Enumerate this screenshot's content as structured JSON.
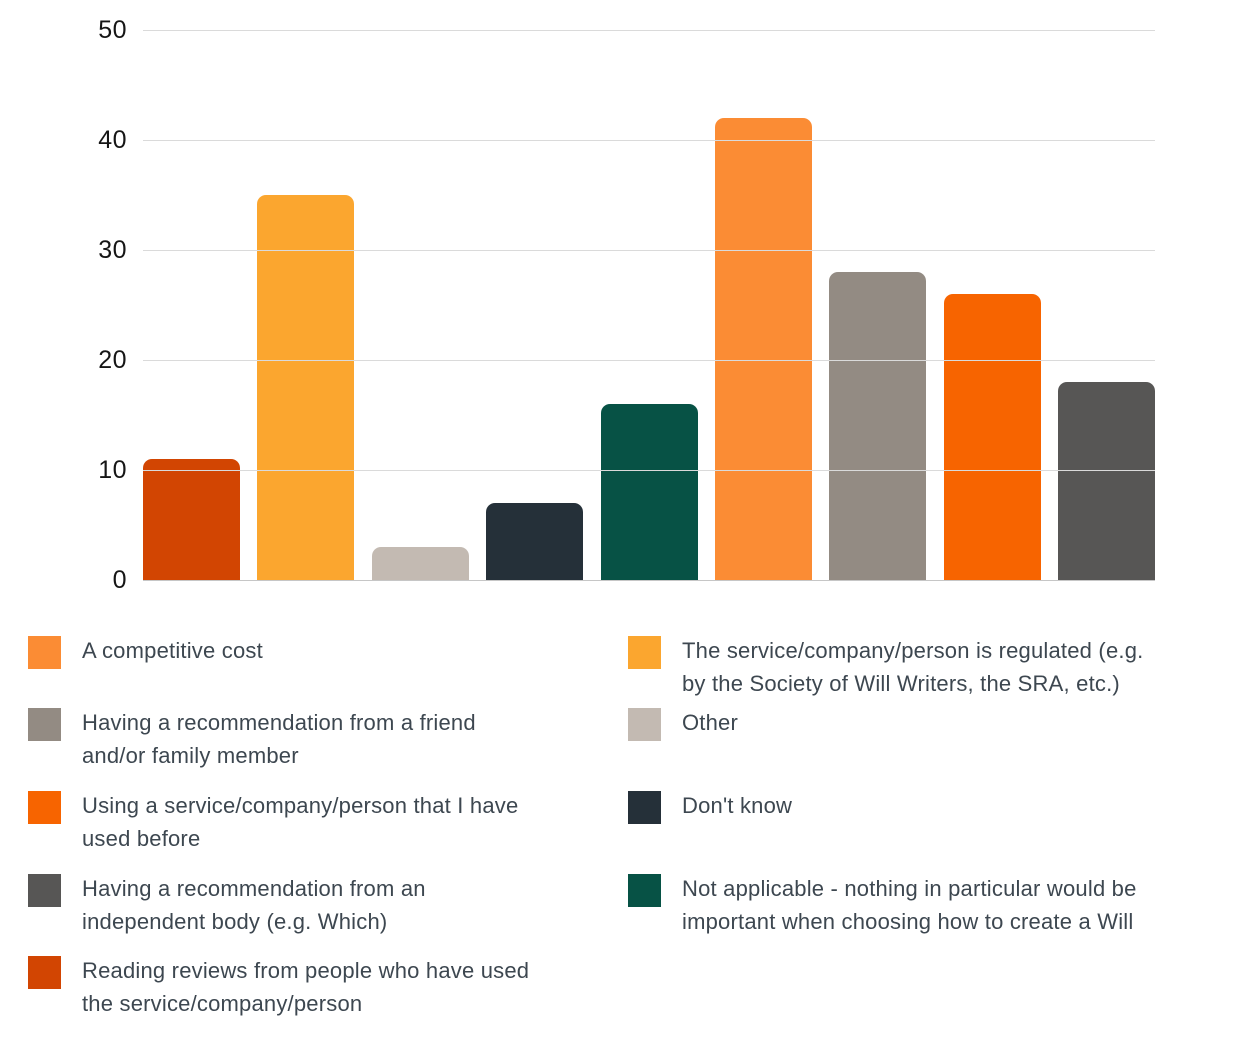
{
  "chart_data": {
    "type": "bar",
    "title": "",
    "xlabel": "",
    "ylabel": "",
    "ylim": [
      0,
      50
    ],
    "yticks": [
      0,
      10,
      20,
      30,
      40,
      50
    ],
    "grid": true,
    "legend_position": "bottom",
    "categories": [
      "Reading reviews from people who have used the service/company/person",
      "The service/company/person is regulated (e.g. by the Society of Will Writers, the SRA, etc.)",
      "Other",
      "Don't know",
      "Not applicable - nothing in particular would be important when choosing how to create a Will",
      "A competitive cost",
      "Having a recommendation from a friend and/or family member",
      "Using a service/company/person that I have used before",
      "Having a recommendation from an independent body (e.g. Which)"
    ],
    "values": [
      11,
      35,
      3,
      7,
      16,
      42,
      28,
      26,
      18
    ],
    "colors": [
      "#d24502",
      "#fba62f",
      "#c3bab2",
      "#253039",
      "#075245",
      "#fb8c34",
      "#938b83",
      "#f76400",
      "#575655"
    ]
  },
  "legend": {
    "columns": [
      [
        {
          "label": "A competitive cost",
          "color": "#fb8c34"
        },
        {
          "label": "Having a recommendation from a friend\nand/or family member",
          "color": "#938b83"
        },
        {
          "label": "Using a service/company/person that I have\nused before",
          "color": "#f76400"
        },
        {
          "label": "Having a recommendation from an\nindependent body (e.g. Which)",
          "color": "#575655"
        },
        {
          "label": "Reading reviews from people who have used\nthe service/company/person",
          "color": "#d24502"
        }
      ],
      [
        {
          "label": "The service/company/person is regulated (e.g.\nby the Society of Will Writers, the SRA, etc.)",
          "color": "#fba62f"
        },
        {
          "label": "Other",
          "color": "#c3bab2"
        },
        {
          "label": "Don't know",
          "color": "#253039"
        },
        {
          "label": "Not applicable - nothing in particular would be\nimportant when choosing how to create a Will",
          "color": "#075245"
        }
      ]
    ]
  }
}
